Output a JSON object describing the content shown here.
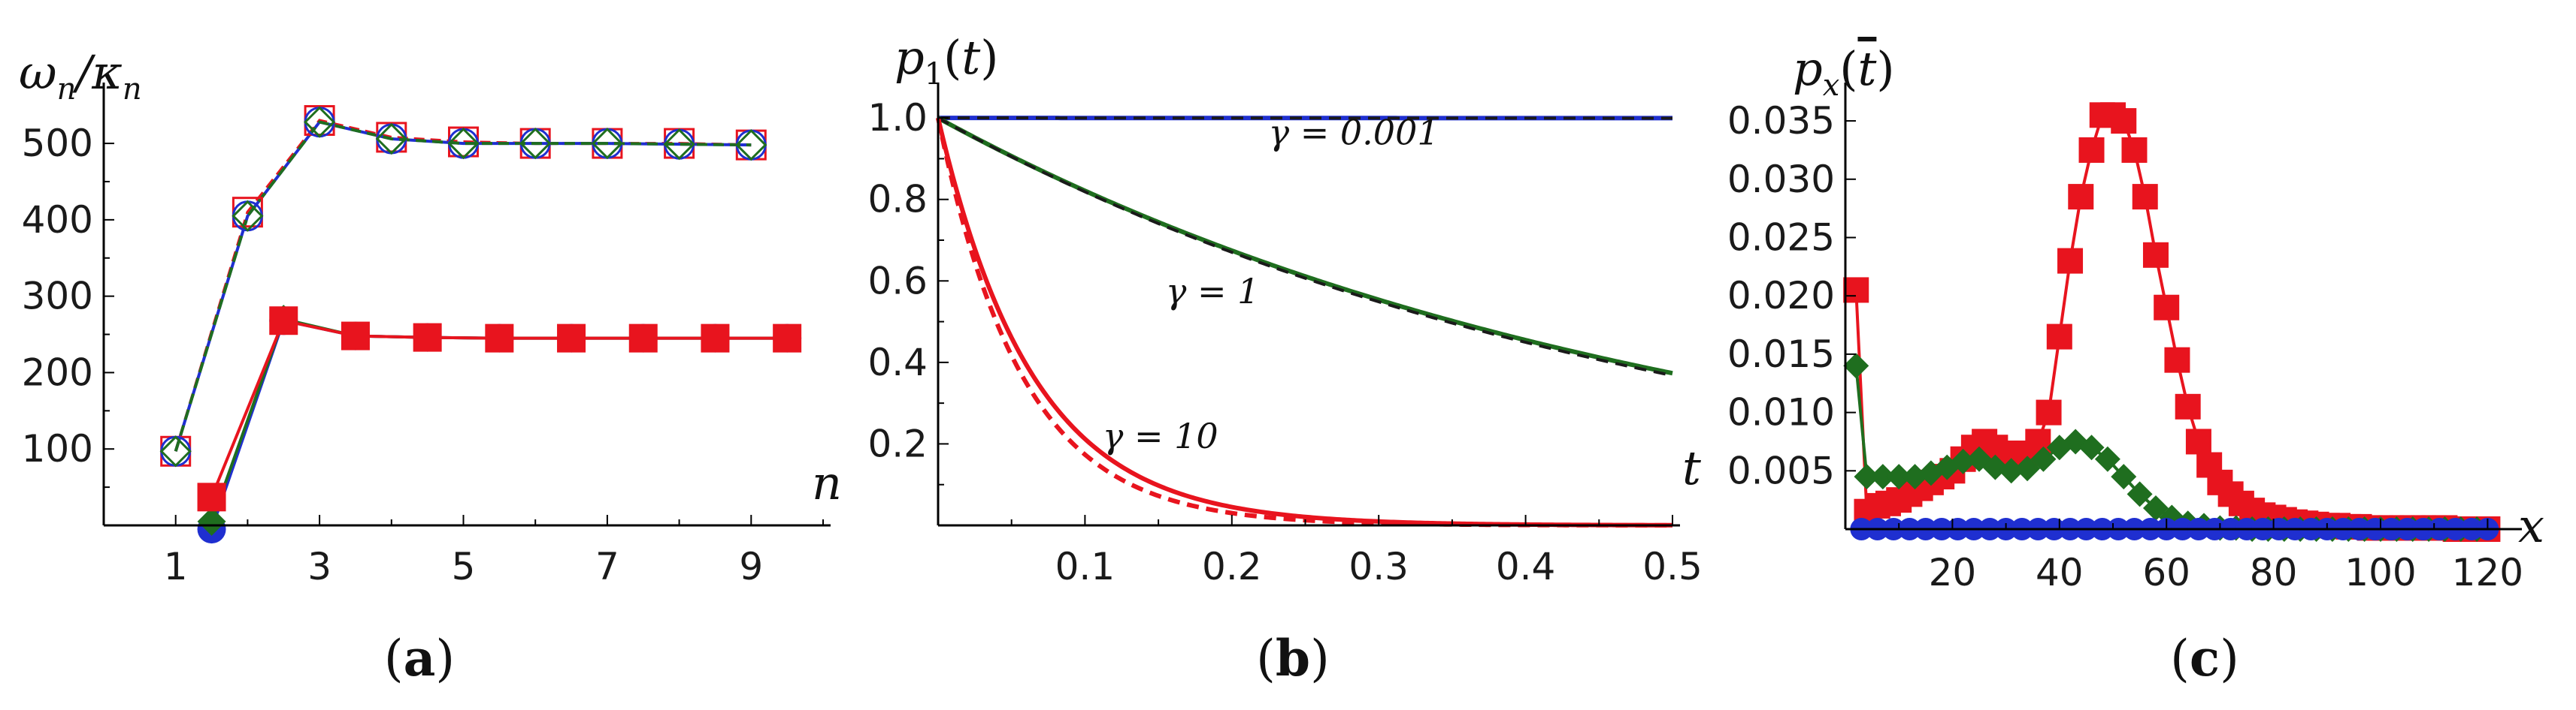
{
  "chart_data": [
    {
      "panel": "a",
      "caption": "(a)",
      "type": "line",
      "ylabel": "ω_n/κ_n",
      "xlabel": "n",
      "xlim": [
        0,
        10
      ],
      "ylim": [
        0,
        560
      ],
      "xticks": [
        1,
        3,
        5,
        7,
        9
      ],
      "yticks": [
        100,
        200,
        300,
        400,
        500
      ],
      "series": [
        {
          "marker": "open-square",
          "color": "#e8141e",
          "dashed": true,
          "x": [
            1,
            2,
            3,
            4,
            5,
            6,
            7,
            8,
            9
          ],
          "y": [
            97,
            410,
            530,
            508,
            502,
            500,
            500,
            500,
            498
          ]
        },
        {
          "marker": "open-circle",
          "color": "#1f2fd0",
          "dashed": false,
          "x": [
            1,
            2,
            3,
            4,
            5,
            6,
            7,
            8,
            9
          ],
          "y": [
            97,
            405,
            528,
            506,
            500,
            500,
            500,
            499,
            498
          ]
        },
        {
          "marker": "open-diamond",
          "color": "#1f6e1f",
          "dashed": true,
          "x": [
            1,
            2,
            3,
            4,
            5,
            6,
            7,
            8,
            9
          ],
          "y": [
            97,
            405,
            528,
            506,
            500,
            500,
            500,
            499,
            498
          ]
        },
        {
          "marker": "filled-circle",
          "color": "#1f2fd0",
          "dashed": false,
          "x": [
            1.5,
            2.5,
            3.5,
            4.5,
            5.5,
            6.5,
            7.5,
            8.5,
            9.5
          ],
          "y": [
            -5,
            268,
            248,
            246,
            245,
            245,
            245,
            245,
            245
          ]
        },
        {
          "marker": "filled-diamond",
          "color": "#1f6e1f",
          "dashed": false,
          "x": [
            1.5,
            2.5,
            3.5,
            4.5,
            5.5,
            6.5,
            7.5,
            8.5,
            9.5
          ],
          "y": [
            5,
            270,
            248,
            246,
            245,
            245,
            245,
            245,
            245
          ]
        },
        {
          "marker": "filled-square",
          "color": "#e8141e",
          "dashed": false,
          "x": [
            1.5,
            2.5,
            3.5,
            4.5,
            5.5,
            6.5,
            7.5,
            8.5,
            9.5
          ],
          "y": [
            37,
            268,
            248,
            246,
            245,
            245,
            245,
            245,
            245
          ]
        }
      ]
    },
    {
      "panel": "b",
      "caption": "(b)",
      "type": "line",
      "ylabel": "p_1(t)",
      "xlabel": "t",
      "xlim": [
        0,
        0.5
      ],
      "ylim": [
        0,
        1.05
      ],
      "xticks": [
        0.1,
        0.2,
        0.3,
        0.4,
        0.5
      ],
      "yticks": [
        0.2,
        0.4,
        0.6,
        0.8,
        1.0
      ],
      "annotations": [
        {
          "text": "γ = 0.001",
          "x": 0.225,
          "y": 0.935
        },
        {
          "text": "γ = 1",
          "x": 0.155,
          "y": 0.545
        },
        {
          "text": "γ = 10",
          "x": 0.112,
          "y": 0.19
        }
      ],
      "series": [
        {
          "name": "γ = 0.001",
          "color": "#1f2fd0",
          "style": "solid",
          "rate": 0.001
        },
        {
          "name": "γ = 0.001",
          "color": "#1a1a1a",
          "style": "dashed",
          "rate": 0.0012
        },
        {
          "name": "γ = 1",
          "color": "#1f6e1f",
          "style": "solid",
          "rate": 1.97
        },
        {
          "name": "γ = 1",
          "color": "#1a1a1a",
          "style": "dashed",
          "rate": 2.0
        },
        {
          "name": "γ = 10",
          "color": "#e8141e",
          "style": "solid",
          "rate": 15.5
        },
        {
          "name": "γ = 10",
          "color": "#e8141e",
          "style": "dashed",
          "rate": 17.5
        }
      ]
    },
    {
      "panel": "c",
      "caption": "(c)",
      "type": "scatter",
      "ylabel": "p_x(t̄)",
      "xlabel": "x",
      "xlim": [
        0,
        125
      ],
      "ylim": [
        0,
        0.037
      ],
      "xticks": [
        20,
        40,
        60,
        80,
        100,
        120
      ],
      "yticks": [
        0.005,
        0.01,
        0.015,
        0.02,
        0.025,
        0.03,
        0.035
      ],
      "ytick_labels": [
        "0.005",
        "0.010",
        "0.015",
        "0.020",
        "0.025",
        "0.030",
        "0.035"
      ],
      "series": [
        {
          "marker": "filled-square",
          "color": "#e8141e",
          "x": [
            2,
            4,
            6,
            8,
            10,
            12,
            14,
            16,
            18,
            20,
            22,
            24,
            26,
            28,
            30,
            32,
            34,
            36,
            38,
            40,
            42,
            44,
            46,
            48,
            50,
            52,
            54,
            56,
            58,
            60,
            62,
            64,
            66,
            68,
            70,
            72,
            74,
            76,
            78,
            80,
            82,
            84,
            86,
            88,
            90,
            92,
            94,
            96,
            98,
            100,
            102,
            104,
            106,
            108,
            110,
            112,
            114,
            116,
            118,
            120
          ],
          "y": [
            0.0205,
            0.0015,
            0.002,
            0.0022,
            0.0025,
            0.003,
            0.0035,
            0.004,
            0.0045,
            0.005,
            0.006,
            0.007,
            0.0075,
            0.007,
            0.0065,
            0.006,
            0.0065,
            0.0075,
            0.01,
            0.0165,
            0.023,
            0.0285,
            0.0325,
            0.0355,
            0.0355,
            0.035,
            0.0325,
            0.0285,
            0.0235,
            0.019,
            0.0145,
            0.0105,
            0.0075,
            0.0055,
            0.004,
            0.003,
            0.0022,
            0.0016,
            0.0012,
            0.001,
            0.0008,
            0.0006,
            0.0005,
            0.0004,
            0.0003,
            0.0003,
            0.0002,
            0.0002,
            0.0001,
            0.0001,
            0.0001,
            0.0001,
            0.0001,
            0.0001,
            0.0001,
            0.0001,
            0.0,
            0.0,
            0.0,
            0.0
          ]
        },
        {
          "marker": "filled-diamond",
          "color": "#1f6e1f",
          "x": [
            2,
            4,
            7,
            10,
            13,
            16,
            19,
            22,
            25,
            28,
            31,
            34,
            37,
            40,
            43,
            46,
            49,
            52,
            55,
            58,
            61,
            64,
            67,
            70,
            73,
            76,
            79,
            82,
            85,
            88,
            91,
            94,
            97,
            100,
            103,
            106,
            109,
            112,
            115,
            118
          ],
          "y": [
            0.014,
            0.0045,
            0.0045,
            0.0045,
            0.0045,
            0.0048,
            0.0053,
            0.0058,
            0.006,
            0.0053,
            0.005,
            0.0052,
            0.006,
            0.007,
            0.0075,
            0.007,
            0.006,
            0.0045,
            0.003,
            0.0018,
            0.001,
            0.0005,
            0.0003,
            0.0001,
            0.0001,
            0.0,
            0.0,
            0.0,
            0.0,
            0.0,
            0.0,
            0.0,
            0.0,
            0.0,
            0.0,
            0.0,
            0.0,
            0.0,
            0.0,
            0.0
          ]
        },
        {
          "marker": "filled-circle",
          "color": "#1f2fd0",
          "x": [
            3,
            6,
            9,
            12,
            15,
            18,
            21,
            24,
            27,
            30,
            33,
            36,
            39,
            42,
            45,
            48,
            51,
            54,
            57,
            60,
            63,
            66,
            69,
            72,
            75,
            78,
            81,
            84,
            87,
            90,
            93,
            96,
            99,
            102,
            105,
            108,
            111,
            114,
            117,
            120
          ],
          "y": [
            0.0,
            0.0,
            0.0,
            0.0,
            0.0,
            0.0,
            0.0,
            0.0,
            0.0,
            0.0,
            0.0,
            0.0,
            0.0,
            0.0,
            0.0,
            0.0,
            0.0,
            0.0,
            0.0,
            0.0,
            0.0,
            0.0,
            0.0,
            0.0,
            0.0,
            0.0,
            0.0,
            0.0,
            0.0,
            0.0,
            0.0,
            0.0,
            0.0,
            0.0,
            0.0,
            0.0,
            0.0,
            0.0,
            0.0,
            0.0
          ]
        }
      ]
    }
  ]
}
